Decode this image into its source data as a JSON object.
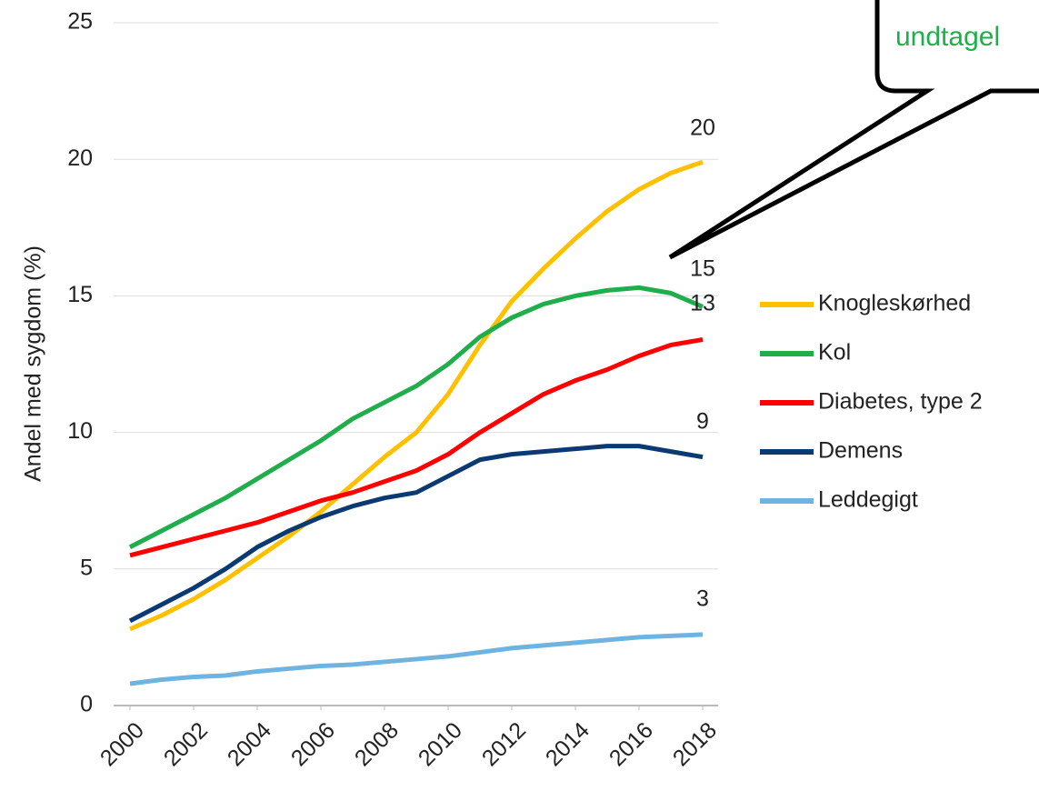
{
  "chart_data": {
    "type": "line",
    "y_label": "Andel med sygdom (%)",
    "annotation": "undtagel",
    "x": [
      2000,
      2001,
      2002,
      2003,
      2004,
      2005,
      2006,
      2007,
      2008,
      2009,
      2010,
      2011,
      2012,
      2013,
      2014,
      2015,
      2016,
      2017,
      2018
    ],
    "xlim": [
      2000,
      2018
    ],
    "xticks": [
      2000,
      2002,
      2004,
      2006,
      2008,
      2010,
      2012,
      2014,
      2016,
      2018
    ],
    "ylim": [
      0,
      25
    ],
    "yticks": [
      0,
      5,
      10,
      15,
      20,
      25
    ],
    "grid": true,
    "legend": "right",
    "series": [
      {
        "name": "Knogleskørhed",
        "color": "#ffc000",
        "end_label": "20",
        "values": [
          2.8,
          3.3,
          3.9,
          4.6,
          5.4,
          6.2,
          7.1,
          8.1,
          9.1,
          10.0,
          11.4,
          13.2,
          14.8,
          16.0,
          17.1,
          18.1,
          18.9,
          19.5,
          19.9
        ]
      },
      {
        "name": "Kol",
        "color": "#1fae4b",
        "end_label": "15",
        "values": [
          5.8,
          6.4,
          7.0,
          7.6,
          8.3,
          9.0,
          9.7,
          10.5,
          11.1,
          11.7,
          12.5,
          13.5,
          14.2,
          14.7,
          15.0,
          15.2,
          15.3,
          15.1,
          14.6
        ]
      },
      {
        "name": "Diabetes, type 2",
        "color": "#ff0000",
        "end_label": "13",
        "values": [
          5.5,
          5.8,
          6.1,
          6.4,
          6.7,
          7.1,
          7.5,
          7.8,
          8.2,
          8.6,
          9.2,
          10.0,
          10.7,
          11.4,
          11.9,
          12.3,
          12.8,
          13.2,
          13.4
        ]
      },
      {
        "name": "Demens",
        "color": "#0b3a73",
        "end_label": "9",
        "values": [
          3.1,
          3.7,
          4.3,
          5.0,
          5.8,
          6.4,
          6.9,
          7.3,
          7.6,
          7.8,
          8.4,
          9.0,
          9.2,
          9.3,
          9.4,
          9.5,
          9.5,
          9.3,
          9.1
        ]
      },
      {
        "name": "Leddegigt",
        "color": "#6fb3e0",
        "end_label": "3",
        "values": [
          0.8,
          0.95,
          1.05,
          1.1,
          1.25,
          1.35,
          1.45,
          1.5,
          1.6,
          1.7,
          1.8,
          1.95,
          2.1,
          2.2,
          2.3,
          2.4,
          2.5,
          2.55,
          2.6
        ]
      }
    ]
  }
}
